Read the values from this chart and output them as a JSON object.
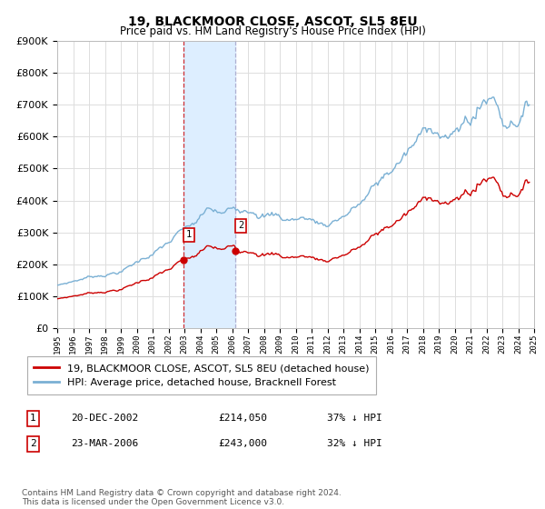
{
  "title": "19, BLACKMOOR CLOSE, ASCOT, SL5 8EU",
  "subtitle": "Price paid vs. HM Land Registry's House Price Index (HPI)",
  "ylim": [
    0,
    900000
  ],
  "yticks": [
    0,
    100000,
    200000,
    300000,
    400000,
    500000,
    600000,
    700000,
    800000,
    900000
  ],
  "sale1_x": 2002.97,
  "sale1_price": 214050,
  "sale1_label": "1",
  "sale1_date": "20-DEC-2002",
  "sale1_pct": "37% ↓ HPI",
  "sale2_x": 2006.22,
  "sale2_price": 243000,
  "sale2_label": "2",
  "sale2_date": "23-MAR-2006",
  "sale2_pct": "32% ↓ HPI",
  "legend_label1": "19, BLACKMOOR CLOSE, ASCOT, SL5 8EU (detached house)",
  "legend_label2": "HPI: Average price, detached house, Bracknell Forest",
  "footer": "Contains HM Land Registry data © Crown copyright and database right 2024.\nThis data is licensed under the Open Government Licence v3.0.",
  "line_color_red": "#cc0000",
  "line_color_blue": "#7ab0d4",
  "highlight_color": "#ddeeff",
  "vline1_color": "#cc0000",
  "vline2_color": "#aaaacc",
  "background_color": "#ffffff",
  "grid_color": "#dddddd",
  "xmin": 1995,
  "xmax": 2025
}
